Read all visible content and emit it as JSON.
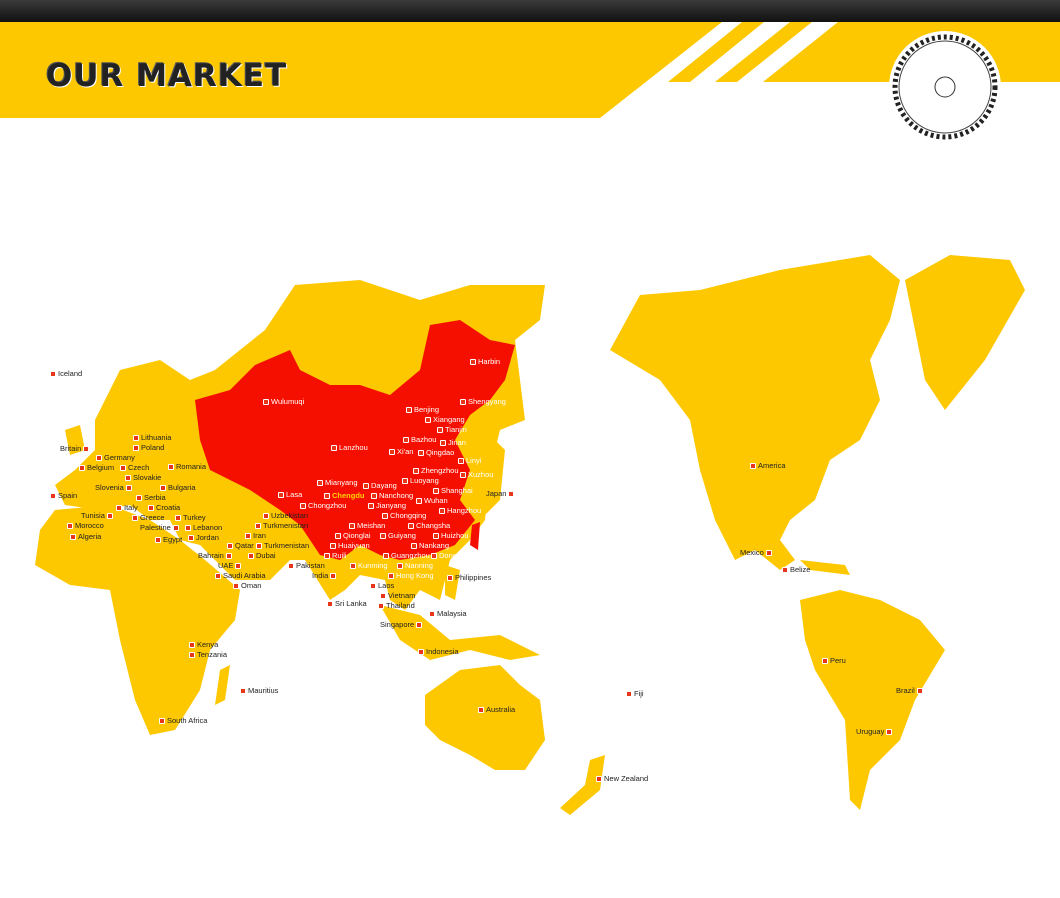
{
  "header": {
    "title": "OUR MARKET"
  },
  "colors": {
    "land": "#fdc800",
    "china": "#f50f00",
    "marker": "#e8361b",
    "banner": "#fdc800"
  },
  "icons": {
    "logo": "saw-blade-icon",
    "marker": "location-flag-icon"
  },
  "markets": [
    "Iceland",
    "Lithuania",
    "Poland",
    "Britain",
    "Germany",
    "Czech",
    "Belgium",
    "Slovakie",
    "Romania",
    "Slovenia",
    "Bulgaria",
    "Serbia",
    "Spain",
    "Italy",
    "Croatia",
    "Turkey",
    "Greece",
    "Tunisia",
    "Lebanon",
    "Palestine",
    "Morocco",
    "Jordan",
    "Algeria",
    "Egypt",
    "Qatar",
    "Bahrain",
    "Dubai",
    "UAE",
    "Saudi Arabia",
    "Oman",
    "Lasa",
    "Uzbekistan",
    "Turkmenistan",
    "Iran",
    "Turkmenistan",
    "Pakistan",
    "India",
    "Sri Lanka",
    "Kenya",
    "Tenzania",
    "Mauritius",
    "South Africa",
    "Wulumuqi",
    "Harbin",
    "Shengyang",
    "Benjing",
    "Xiangang",
    "Tianjin",
    "Bazhou",
    "Jinan",
    "Lanzhou",
    "Xi'an",
    "Qingdao",
    "Linyi",
    "Zhengzhou",
    "Luoyang",
    "Xuzhou",
    "Mianyang",
    "Dayang",
    "Shanghai",
    "Chengdu",
    "Nanchong",
    "Wuhan",
    "Jianyang",
    "Hangzhou",
    "Chongzhou",
    "Meishan",
    "Chongqing",
    "Qionglai",
    "Changsha",
    "Huaiyuan",
    "Guiyang",
    "Nankang",
    "Ruili",
    "Kunming",
    "Guangzhou",
    "Huizhou",
    "Hong Kong",
    "Dongguan",
    "Nanning",
    "Laos",
    "Vietnam",
    "Thailand",
    "Philippines",
    "Malaysia",
    "Singapore",
    "Indonesia",
    "Australia",
    "Fiji",
    "New Zealand",
    "Japan",
    "America",
    "Mexico",
    "Belize",
    "Peru",
    "Brazil",
    "Uruguay"
  ]
}
